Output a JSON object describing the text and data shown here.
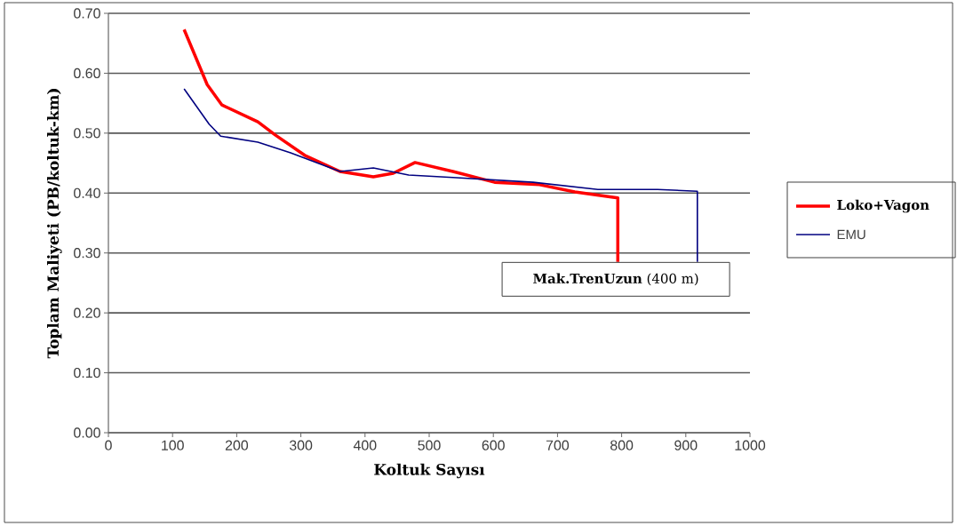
{
  "chart_data": {
    "type": "line",
    "xlabel": "Koltuk Sayısı",
    "ylabel": "Toplam Maliyeti (PB/koltuk-km)",
    "xlim": [
      0,
      1000
    ],
    "xticks": [
      0,
      100,
      200,
      300,
      400,
      500,
      600,
      700,
      800,
      900,
      1000
    ],
    "ylim": [
      0,
      0.7
    ],
    "yticks": [
      {
        "value": 0,
        "label": "0.00"
      },
      {
        "value": 0.1,
        "label": "0.10"
      },
      {
        "value": 0.2,
        "label": "0.20"
      },
      {
        "value": 0.3,
        "label": "0.30"
      },
      {
        "value": 0.4,
        "label": "0.40"
      },
      {
        "value": 0.5,
        "label": "0.50"
      },
      {
        "value": 0.6,
        "label": "0.60"
      },
      {
        "value": 0.7,
        "label": "0.70"
      }
    ],
    "grid": "y",
    "legend": "right",
    "marker": "none",
    "line_style": "solid",
    "annotations": [
      "**Mak.TrenUzun** (400 m)"
    ],
    "series": [
      {
        "name": "Loko+Vagon",
        "color": "#ff0000",
        "x": [
          118,
          154,
          177,
          233,
          260,
          306,
          361,
          413,
          444,
          478,
          537,
          602,
          672,
          727,
          794,
          794
        ],
        "values": [
          0.673,
          0.581,
          0.547,
          0.519,
          0.497,
          0.463,
          0.436,
          0.427,
          0.433,
          0.451,
          0.436,
          0.418,
          0.414,
          0.402,
          0.392,
          0.285
        ]
      },
      {
        "name": "EMU",
        "color": "#000080",
        "x": [
          118,
          157,
          175,
          233,
          284,
          361,
          413,
          468,
          537,
          662,
          763,
          856,
          918,
          918
        ],
        "values": [
          0.574,
          0.515,
          0.495,
          0.485,
          0.467,
          0.436,
          0.442,
          0.43,
          0.426,
          0.418,
          0.406,
          0.406,
          0.403,
          0.285
        ]
      }
    ]
  }
}
